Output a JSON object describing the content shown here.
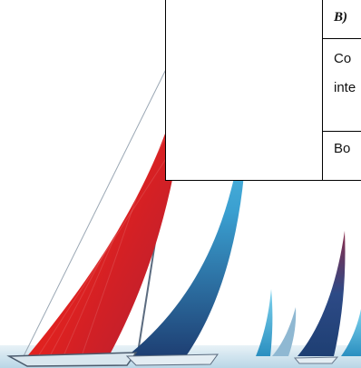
{
  "table": {
    "header_cell": "B)",
    "row1_line1": "Co",
    "row1_line2": "inte",
    "row2": "Bo"
  },
  "colors": {
    "sail_red": "#e8221c",
    "sail_navy": "#1e3f73",
    "sail_cyan": "#3ab0d8",
    "water": "#cfe3ee"
  },
  "icons": [
    "sailboat-illustration"
  ]
}
